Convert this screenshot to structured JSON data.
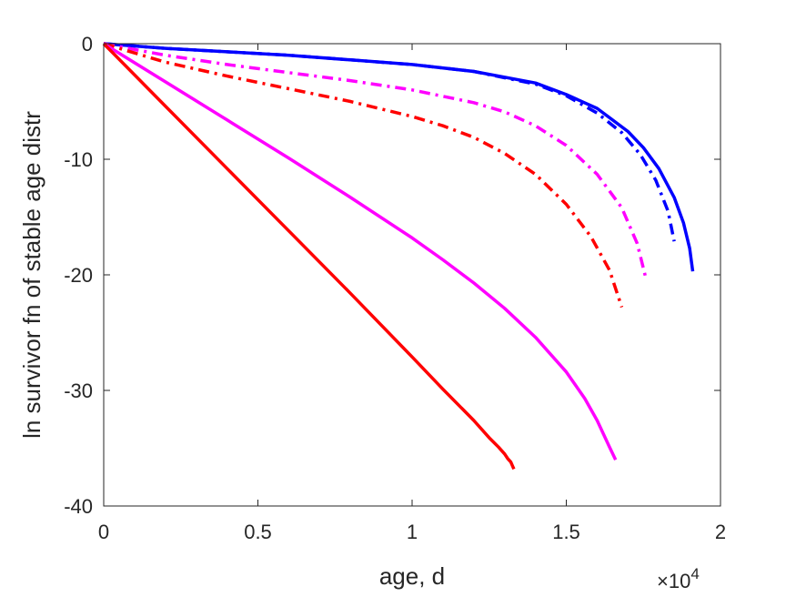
{
  "chart_data": {
    "type": "line",
    "xlabel": "age, d",
    "ylabel": "ln survivor fn of stable age distr",
    "x_exponent_label": "×10",
    "x_exponent_power": "4",
    "xlim": [
      0,
      20000
    ],
    "ylim": [
      -40,
      0
    ],
    "x_ticks": [
      0,
      5000,
      10000,
      15000,
      20000
    ],
    "x_tick_labels": [
      "0",
      "0.5",
      "1",
      "1.5",
      "2"
    ],
    "y_ticks": [
      -40,
      -30,
      -20,
      -10,
      0
    ],
    "y_tick_labels": [
      "-40",
      "-30",
      "-20",
      "-10",
      "0"
    ],
    "grid": false,
    "series": [
      {
        "color": "#0000ff",
        "style": "solid",
        "x": [
          0,
          2000,
          4000,
          6000,
          8000,
          10000,
          12000,
          14000,
          15000,
          16000,
          17000,
          17500,
          18000,
          18500,
          18800,
          19000,
          19100
        ],
        "y": [
          0,
          -0.4,
          -0.7,
          -1.0,
          -1.4,
          -1.8,
          -2.4,
          -3.4,
          -4.4,
          -5.6,
          -7.6,
          -9.0,
          -10.8,
          -13.3,
          -15.5,
          -17.7,
          -19.7
        ]
      },
      {
        "color": "#0000ff",
        "style": "dashdot",
        "x": [
          0,
          2000,
          4000,
          6000,
          8000,
          10000,
          12000,
          14000,
          15000,
          16000,
          16800,
          17400,
          17900,
          18300,
          18500
        ],
        "y": [
          0,
          -0.4,
          -0.7,
          -1.0,
          -1.4,
          -1.8,
          -2.4,
          -3.5,
          -4.5,
          -6.0,
          -7.7,
          -9.6,
          -11.8,
          -14.5,
          -17.1
        ]
      },
      {
        "color": "#ff00ff",
        "style": "dashdot",
        "x": [
          0,
          1000,
          2000,
          4000,
          6000,
          8000,
          10000,
          12000,
          13000,
          14000,
          15000,
          16000,
          16800,
          17300,
          17600
        ],
        "y": [
          0,
          -0.5,
          -1.0,
          -1.8,
          -2.5,
          -3.2,
          -4.0,
          -5.1,
          -5.9,
          -7.1,
          -8.8,
          -11.3,
          -14.2,
          -17.3,
          -20.5
        ]
      },
      {
        "color": "#ff0000",
        "style": "dashdot",
        "x": [
          0,
          1000,
          2000,
          4000,
          6000,
          8000,
          10000,
          11000,
          12000,
          13000,
          14000,
          15000,
          15800,
          16400,
          16800
        ],
        "y": [
          0,
          -0.8,
          -1.6,
          -2.8,
          -3.9,
          -5.0,
          -6.3,
          -7.1,
          -8.1,
          -9.5,
          -11.3,
          -13.9,
          -16.7,
          -19.6,
          -22.8
        ]
      },
      {
        "color": "#ff00ff",
        "style": "solid",
        "x": [
          0,
          2000,
          4000,
          6000,
          8000,
          10000,
          11000,
          12000,
          13000,
          14000,
          15000,
          15600,
          16000,
          16400,
          16600
        ],
        "y": [
          0,
          -3.3,
          -6.6,
          -9.9,
          -13.3,
          -16.8,
          -18.7,
          -20.7,
          -22.9,
          -25.4,
          -28.4,
          -30.7,
          -32.6,
          -34.9,
          -36.0
        ]
      },
      {
        "color": "#ff0000",
        "style": "solid",
        "x": [
          0,
          2000,
          4000,
          6000,
          8000,
          10000,
          11000,
          12000,
          12500,
          12800,
          13000,
          13100,
          13200,
          13300
        ],
        "y": [
          0,
          -5.4,
          -10.8,
          -16.2,
          -21.6,
          -27.1,
          -29.9,
          -32.6,
          -34.1,
          -34.9,
          -35.5,
          -35.9,
          -36.2,
          -36.8
        ]
      }
    ]
  }
}
